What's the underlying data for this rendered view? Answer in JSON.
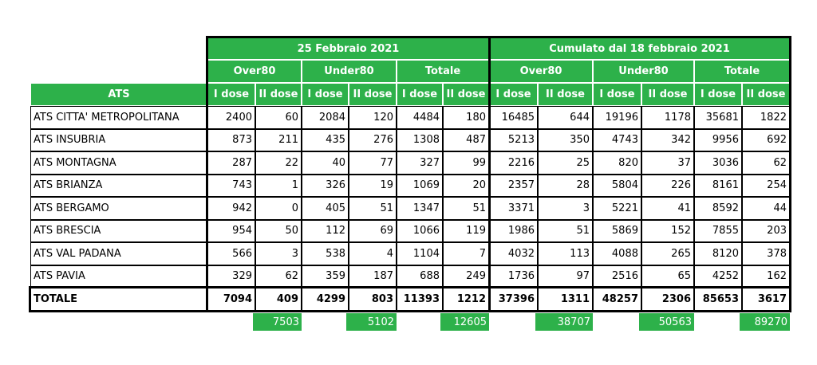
{
  "header": {
    "periods": [
      "25 Febbraio 2021",
      "Cumulato dal 18 febbraio 2021"
    ],
    "groups": [
      "Over80",
      "Under80",
      "Totale",
      "Over80",
      "Under80",
      "Totale"
    ],
    "first_column": "ATS",
    "doses": [
      "I dose",
      "II dose",
      "I dose",
      "II dose",
      "I dose",
      "II dose",
      "I dose",
      "II dose",
      "I dose",
      "II dose",
      "I dose",
      "II dose"
    ]
  },
  "table": {
    "rows": [
      {
        "name": "ATS CITTA' METROPOLITANA",
        "values": [
          2400,
          60,
          2084,
          120,
          4484,
          180,
          16485,
          644,
          19196,
          1178,
          35681,
          1822
        ]
      },
      {
        "name": "ATS INSUBRIA",
        "values": [
          873,
          211,
          435,
          276,
          1308,
          487,
          5213,
          350,
          4743,
          342,
          9956,
          692
        ]
      },
      {
        "name": "ATS MONTAGNA",
        "values": [
          287,
          22,
          40,
          77,
          327,
          99,
          2216,
          25,
          820,
          37,
          3036,
          62
        ]
      },
      {
        "name": "ATS BRIANZA",
        "values": [
          743,
          1,
          326,
          19,
          1069,
          20,
          2357,
          28,
          5804,
          226,
          8161,
          254
        ]
      },
      {
        "name": "ATS BERGAMO",
        "values": [
          942,
          0,
          405,
          51,
          1347,
          51,
          3371,
          3,
          5221,
          41,
          8592,
          44
        ]
      },
      {
        "name": "ATS BRESCIA",
        "values": [
          954,
          50,
          112,
          69,
          1066,
          119,
          1986,
          51,
          5869,
          152,
          7855,
          203
        ]
      },
      {
        "name": "ATS VAL PADANA",
        "values": [
          566,
          3,
          538,
          4,
          1104,
          7,
          4032,
          113,
          4088,
          265,
          8120,
          378
        ]
      },
      {
        "name": "ATS PAVIA",
        "values": [
          329,
          62,
          359,
          187,
          688,
          249,
          1736,
          97,
          2516,
          65,
          4252,
          162
        ]
      }
    ]
  },
  "total": {
    "label": "TOTALE",
    "values": [
      7094,
      409,
      4299,
      803,
      11393,
      1212,
      37396,
      1311,
      48257,
      2306,
      85653,
      3617
    ]
  },
  "sums": [
    7503,
    5102,
    12605,
    38707,
    50563,
    89270
  ]
}
